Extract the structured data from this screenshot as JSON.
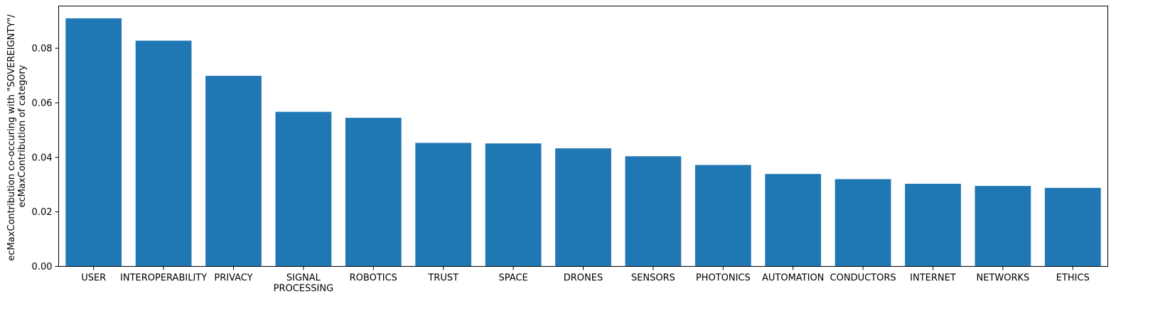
{
  "chart_data": {
    "type": "bar",
    "title": "",
    "xlabel": "",
    "ylabel_lines": [
      "ecMaxContribution co-occuring with \"SOVEREIGNTY\"/",
      "ecMaxContribution of category"
    ],
    "categories": [
      "USER",
      "INTEROPERABILITY",
      "PRIVACY",
      "SIGNAL\nPROCESSING",
      "ROBOTICS",
      "TRUST",
      "SPACE",
      "DRONES",
      "SENSORS",
      "PHOTONICS",
      "AUTOMATION",
      "CONDUCTORS",
      "INTERNET",
      "NETWORKS",
      "ETHICS"
    ],
    "values": [
      0.091,
      0.0828,
      0.0699,
      0.0567,
      0.0545,
      0.0453,
      0.0451,
      0.0433,
      0.0404,
      0.0372,
      0.0339,
      0.032,
      0.0303,
      0.0295,
      0.0288
    ],
    "ylim": [
      0,
      0.0955
    ],
    "yticks": [
      0.0,
      0.02,
      0.04,
      0.06,
      0.08
    ],
    "ytick_labels": [
      "0.00",
      "0.02",
      "0.04",
      "0.06",
      "0.08"
    ],
    "bar_color": "#1f77b4",
    "grid": false,
    "legend": "none"
  }
}
